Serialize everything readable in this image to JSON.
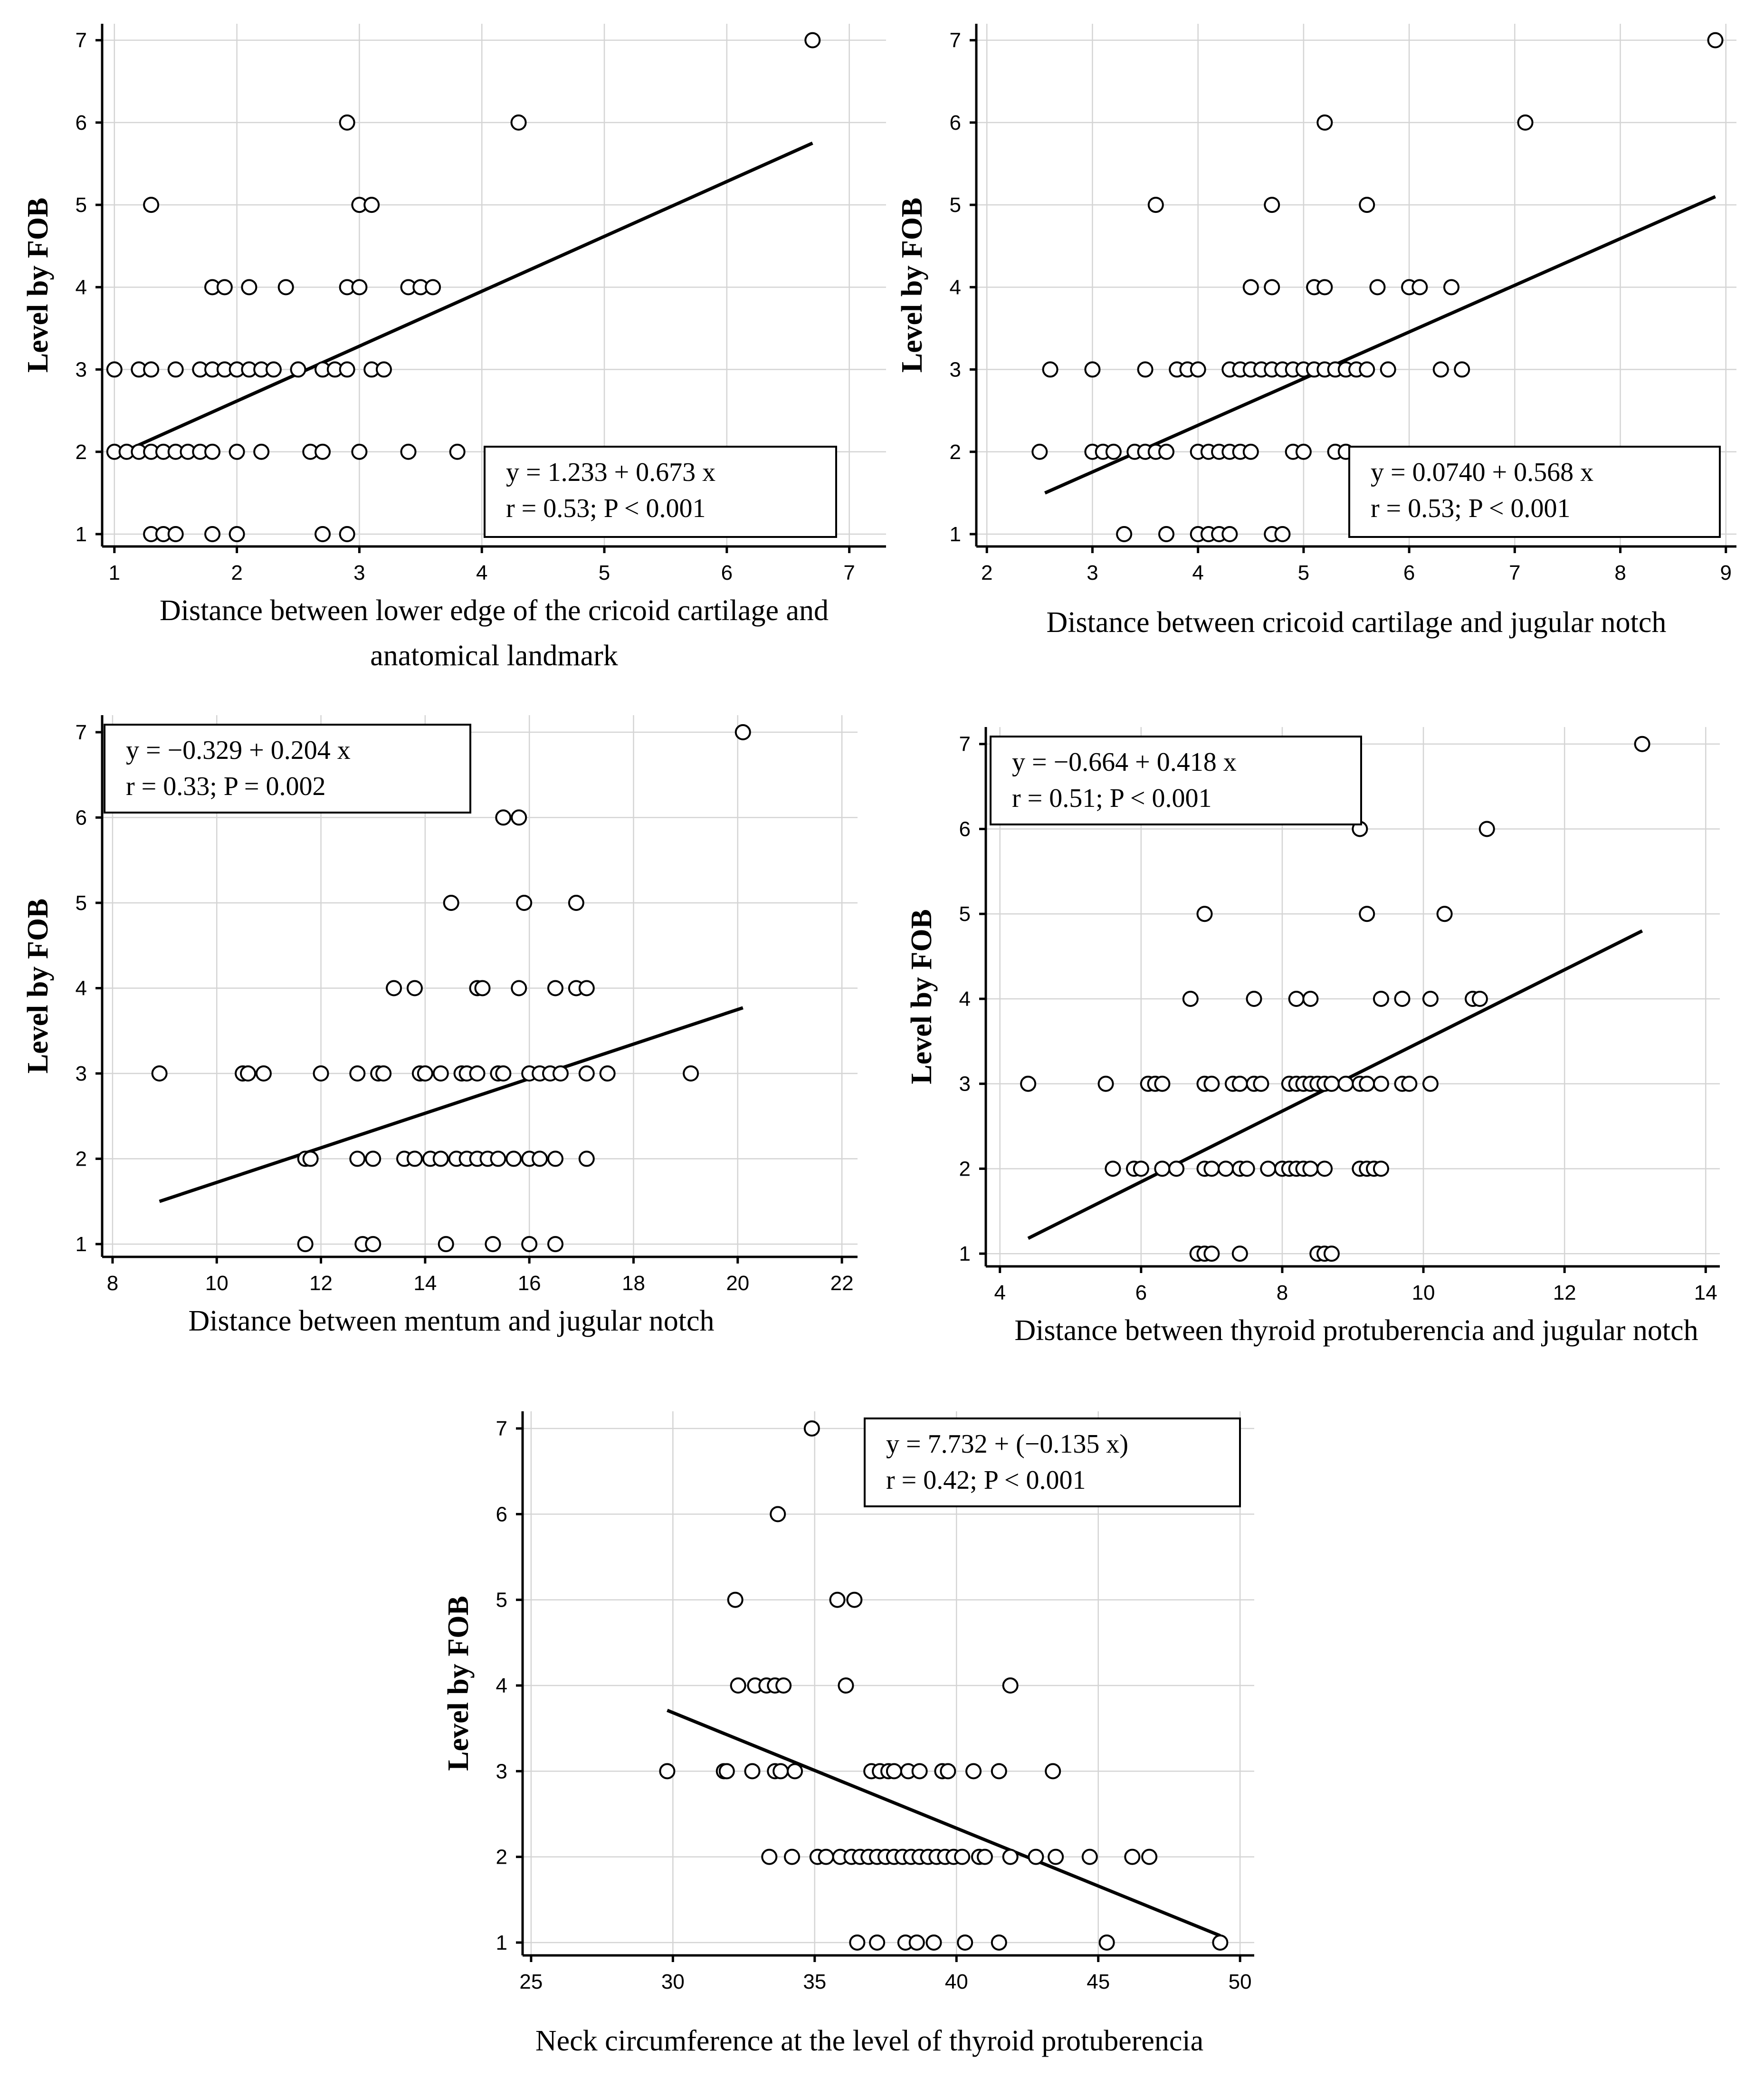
{
  "chart_data": [
    {
      "type": "scatter",
      "title": "",
      "xlabel": "Distance between lower edge of the cricoid cartilage and anatomical landmark",
      "xlabel_lines": [
        "Distance between lower edge of the cricoid cartilage and",
        "anatomical landmark"
      ],
      "ylabel": "Level by FOB",
      "xlim": [
        0.9,
        7.3
      ],
      "ylim": [
        0.85,
        7.2
      ],
      "xticks": [
        1,
        2,
        3,
        4,
        5,
        6,
        7
      ],
      "yticks": [
        1,
        2,
        3,
        4,
        5,
        6,
        7
      ],
      "equation": "y = 1.233  +  0.673  x",
      "stats": "r = 0.53; P < 0.001",
      "fit": {
        "x": [
          1.0,
          6.7
        ],
        "y": [
          1.95,
          5.75
        ]
      },
      "points": [
        [
          6.7,
          7
        ],
        [
          2.9,
          6
        ],
        [
          4.3,
          6
        ],
        [
          1.3,
          5
        ],
        [
          3.0,
          5
        ],
        [
          3.1,
          5
        ],
        [
          1.8,
          4
        ],
        [
          1.9,
          4
        ],
        [
          2.1,
          4
        ],
        [
          2.4,
          4
        ],
        [
          2.9,
          4
        ],
        [
          3.0,
          4
        ],
        [
          3.4,
          4
        ],
        [
          3.5,
          4
        ],
        [
          3.6,
          4
        ],
        [
          1.0,
          3
        ],
        [
          1.2,
          3
        ],
        [
          1.3,
          3
        ],
        [
          1.5,
          3
        ],
        [
          1.7,
          3
        ],
        [
          1.8,
          3
        ],
        [
          1.9,
          3
        ],
        [
          2.0,
          3
        ],
        [
          2.1,
          3
        ],
        [
          2.2,
          3
        ],
        [
          2.3,
          3
        ],
        [
          2.5,
          3
        ],
        [
          2.7,
          3
        ],
        [
          2.8,
          3
        ],
        [
          2.9,
          3
        ],
        [
          3.1,
          3
        ],
        [
          3.2,
          3
        ],
        [
          1.0,
          2
        ],
        [
          1.1,
          2
        ],
        [
          1.2,
          2
        ],
        [
          1.3,
          2
        ],
        [
          1.4,
          2
        ],
        [
          1.5,
          2
        ],
        [
          1.6,
          2
        ],
        [
          1.7,
          2
        ],
        [
          1.8,
          2
        ],
        [
          2.0,
          2
        ],
        [
          2.2,
          2
        ],
        [
          2.6,
          2
        ],
        [
          2.7,
          2
        ],
        [
          3.0,
          2
        ],
        [
          3.4,
          2
        ],
        [
          3.8,
          2
        ],
        [
          1.3,
          1
        ],
        [
          1.4,
          1
        ],
        [
          1.5,
          1
        ],
        [
          1.8,
          1
        ],
        [
          2.0,
          1
        ],
        [
          2.7,
          1
        ],
        [
          2.9,
          1
        ]
      ]
    },
    {
      "type": "scatter",
      "title": "",
      "xlabel": "Distance between cricoid cartilage and jugular notch",
      "xlabel_lines": [
        "Distance between cricoid cartilage and jugular notch"
      ],
      "ylabel": "Level by FOB",
      "xlim": [
        1.9,
        9.1
      ],
      "ylim": [
        0.85,
        7.2
      ],
      "xticks": [
        2,
        3,
        4,
        5,
        6,
        7,
        8,
        9
      ],
      "yticks": [
        1,
        2,
        3,
        4,
        5,
        6,
        7
      ],
      "equation": "y = 0.0740  +  0.568  x",
      "stats": "r = 0.53; P < 0.001",
      "fit": {
        "x": [
          2.55,
          8.9
        ],
        "y": [
          1.5,
          5.1
        ]
      },
      "points": [
        [
          8.9,
          7
        ],
        [
          7.1,
          6
        ],
        [
          5.2,
          6
        ],
        [
          3.6,
          5
        ],
        [
          4.7,
          5
        ],
        [
          5.6,
          5
        ],
        [
          4.5,
          4
        ],
        [
          4.7,
          4
        ],
        [
          5.1,
          4
        ],
        [
          5.2,
          4
        ],
        [
          5.7,
          4
        ],
        [
          6.0,
          4
        ],
        [
          6.1,
          4
        ],
        [
          6.4,
          4
        ],
        [
          2.6,
          3
        ],
        [
          3.0,
          3
        ],
        [
          3.5,
          3
        ],
        [
          3.8,
          3
        ],
        [
          3.9,
          3
        ],
        [
          4.0,
          3
        ],
        [
          4.3,
          3
        ],
        [
          4.4,
          3
        ],
        [
          4.5,
          3
        ],
        [
          4.6,
          3
        ],
        [
          4.7,
          3
        ],
        [
          4.8,
          3
        ],
        [
          4.9,
          3
        ],
        [
          5.0,
          3
        ],
        [
          5.1,
          3
        ],
        [
          5.2,
          3
        ],
        [
          5.3,
          3
        ],
        [
          5.4,
          3
        ],
        [
          5.5,
          3
        ],
        [
          5.6,
          3
        ],
        [
          5.8,
          3
        ],
        [
          6.3,
          3
        ],
        [
          6.5,
          3
        ],
        [
          2.5,
          2
        ],
        [
          3.0,
          2
        ],
        [
          3.1,
          2
        ],
        [
          3.2,
          2
        ],
        [
          3.4,
          2
        ],
        [
          3.5,
          2
        ],
        [
          3.6,
          2
        ],
        [
          3.7,
          2
        ],
        [
          4.0,
          2
        ],
        [
          4.1,
          2
        ],
        [
          4.2,
          2
        ],
        [
          4.3,
          2
        ],
        [
          4.4,
          2
        ],
        [
          4.5,
          2
        ],
        [
          4.9,
          2
        ],
        [
          5.0,
          2
        ],
        [
          5.3,
          2
        ],
        [
          5.4,
          2
        ],
        [
          3.3,
          1
        ],
        [
          3.7,
          1
        ],
        [
          4.0,
          1
        ],
        [
          4.1,
          1
        ],
        [
          4.2,
          1
        ],
        [
          4.3,
          1
        ],
        [
          4.7,
          1
        ],
        [
          4.8,
          1
        ]
      ]
    },
    {
      "type": "scatter",
      "title": "",
      "xlabel": "Distance between mentum and jugular notch",
      "xlabel_lines": [
        "Distance between mentum and jugular notch"
      ],
      "ylabel": "Level by FOB",
      "xlim": [
        7.8,
        22.3
      ],
      "ylim": [
        0.85,
        7.2
      ],
      "xticks": [
        8,
        10,
        12,
        14,
        16,
        18,
        20,
        22
      ],
      "yticks": [
        1,
        2,
        3,
        4,
        5,
        6,
        7
      ],
      "equation": "y = −0.329  +  0.204  x",
      "stats": "r = 0.33; P = 0.002",
      "fit": {
        "x": [
          8.9,
          20.1
        ],
        "y": [
          1.5,
          3.77
        ]
      },
      "points": [
        [
          20.1,
          7
        ],
        [
          15.5,
          6
        ],
        [
          15.8,
          6
        ],
        [
          14.5,
          5
        ],
        [
          15.9,
          5
        ],
        [
          16.9,
          5
        ],
        [
          13.4,
          4
        ],
        [
          13.8,
          4
        ],
        [
          15.0,
          4
        ],
        [
          15.1,
          4
        ],
        [
          15.8,
          4
        ],
        [
          16.5,
          4
        ],
        [
          16.9,
          4
        ],
        [
          17.1,
          4
        ],
        [
          8.9,
          3
        ],
        [
          10.5,
          3
        ],
        [
          10.6,
          3
        ],
        [
          10.9,
          3
        ],
        [
          12.0,
          3
        ],
        [
          12.7,
          3
        ],
        [
          13.1,
          3
        ],
        [
          13.2,
          3
        ],
        [
          13.9,
          3
        ],
        [
          14.0,
          3
        ],
        [
          14.3,
          3
        ],
        [
          14.7,
          3
        ],
        [
          14.8,
          3
        ],
        [
          15.0,
          3
        ],
        [
          15.4,
          3
        ],
        [
          15.5,
          3
        ],
        [
          16.0,
          3
        ],
        [
          16.2,
          3
        ],
        [
          16.4,
          3
        ],
        [
          16.6,
          3
        ],
        [
          17.1,
          3
        ],
        [
          17.5,
          3
        ],
        [
          19.1,
          3
        ],
        [
          11.7,
          2
        ],
        [
          11.8,
          2
        ],
        [
          12.7,
          2
        ],
        [
          13.0,
          2
        ],
        [
          13.6,
          2
        ],
        [
          13.8,
          2
        ],
        [
          14.1,
          2
        ],
        [
          14.3,
          2
        ],
        [
          14.6,
          2
        ],
        [
          14.8,
          2
        ],
        [
          15.0,
          2
        ],
        [
          15.2,
          2
        ],
        [
          15.4,
          2
        ],
        [
          15.7,
          2
        ],
        [
          16.0,
          2
        ],
        [
          16.2,
          2
        ],
        [
          16.5,
          2
        ],
        [
          17.1,
          2
        ],
        [
          11.7,
          1
        ],
        [
          12.8,
          1
        ],
        [
          13.0,
          1
        ],
        [
          14.4,
          1
        ],
        [
          15.3,
          1
        ],
        [
          16.0,
          1
        ],
        [
          16.5,
          1
        ]
      ]
    },
    {
      "type": "scatter",
      "title": "",
      "xlabel": "Distance between thyroid protuberencia and jugular notch",
      "xlabel_lines": [
        "Distance between thyroid protuberencia and jugular notch"
      ],
      "ylabel": "Level by FOB",
      "xlim": [
        3.8,
        14.2
      ],
      "ylim": [
        0.85,
        7.2
      ],
      "xticks": [
        4,
        6,
        8,
        10,
        12,
        14
      ],
      "yticks": [
        1,
        2,
        3,
        4,
        5,
        6,
        7
      ],
      "equation": "y = −0.664  +  0.418  x",
      "stats": "r = 0.51; P < 0.001",
      "fit": {
        "x": [
          4.4,
          13.1
        ],
        "y": [
          1.18,
          4.8
        ]
      },
      "points": [
        [
          13.1,
          7
        ],
        [
          9.1,
          6
        ],
        [
          10.9,
          6
        ],
        [
          6.9,
          5
        ],
        [
          9.2,
          5
        ],
        [
          10.3,
          5
        ],
        [
          6.7,
          4
        ],
        [
          7.6,
          4
        ],
        [
          8.2,
          4
        ],
        [
          8.4,
          4
        ],
        [
          9.4,
          4
        ],
        [
          9.7,
          4
        ],
        [
          10.1,
          4
        ],
        [
          10.7,
          4
        ],
        [
          10.8,
          4
        ],
        [
          4.4,
          3
        ],
        [
          5.5,
          3
        ],
        [
          6.1,
          3
        ],
        [
          6.2,
          3
        ],
        [
          6.3,
          3
        ],
        [
          6.9,
          3
        ],
        [
          7.0,
          3
        ],
        [
          7.3,
          3
        ],
        [
          7.4,
          3
        ],
        [
          7.6,
          3
        ],
        [
          7.7,
          3
        ],
        [
          8.1,
          3
        ],
        [
          8.2,
          3
        ],
        [
          8.3,
          3
        ],
        [
          8.4,
          3
        ],
        [
          8.5,
          3
        ],
        [
          8.6,
          3
        ],
        [
          8.7,
          3
        ],
        [
          8.9,
          3
        ],
        [
          9.1,
          3
        ],
        [
          9.2,
          3
        ],
        [
          9.4,
          3
        ],
        [
          9.7,
          3
        ],
        [
          9.8,
          3
        ],
        [
          10.1,
          3
        ],
        [
          5.6,
          2
        ],
        [
          5.9,
          2
        ],
        [
          6.0,
          2
        ],
        [
          6.3,
          2
        ],
        [
          6.5,
          2
        ],
        [
          6.9,
          2
        ],
        [
          7.0,
          2
        ],
        [
          7.2,
          2
        ],
        [
          7.4,
          2
        ],
        [
          7.5,
          2
        ],
        [
          7.8,
          2
        ],
        [
          8.0,
          2
        ],
        [
          8.1,
          2
        ],
        [
          8.2,
          2
        ],
        [
          8.3,
          2
        ],
        [
          8.4,
          2
        ],
        [
          8.6,
          2
        ],
        [
          9.1,
          2
        ],
        [
          9.2,
          2
        ],
        [
          9.3,
          2
        ],
        [
          9.4,
          2
        ],
        [
          6.8,
          1
        ],
        [
          6.9,
          1
        ],
        [
          7.0,
          1
        ],
        [
          7.4,
          1
        ],
        [
          8.5,
          1
        ],
        [
          8.6,
          1
        ],
        [
          8.7,
          1
        ]
      ]
    },
    {
      "type": "scatter",
      "title": "",
      "xlabel": "Neck circumference  at the level  of thyroid protuberencia",
      "xlabel_lines": [
        "Neck circumference  at the level  of thyroid protuberencia"
      ],
      "ylabel": "Level by FOB",
      "xlim": [
        24.7,
        50.5
      ],
      "ylim": [
        0.85,
        7.2
      ],
      "xticks": [
        25,
        30,
        35,
        40,
        45,
        50
      ],
      "yticks": [
        1,
        2,
        3,
        4,
        5,
        6,
        7
      ],
      "equation": "y = 7.732  +  (−0.135  x)",
      "stats": "r = 0.42; P < 0.001",
      "fit": {
        "x": [
          29.8,
          49.3
        ],
        "y": [
          3.71,
          1.08
        ]
      },
      "points": [
        [
          34.9,
          7
        ],
        [
          33.7,
          6
        ],
        [
          32.2,
          5
        ],
        [
          35.8,
          5
        ],
        [
          36.4,
          5
        ],
        [
          32.3,
          4
        ],
        [
          32.9,
          4
        ],
        [
          33.3,
          4
        ],
        [
          33.6,
          4
        ],
        [
          33.9,
          4
        ],
        [
          36.1,
          4
        ],
        [
          41.9,
          4
        ],
        [
          29.8,
          3
        ],
        [
          31.8,
          3
        ],
        [
          31.9,
          3
        ],
        [
          32.8,
          3
        ],
        [
          33.6,
          3
        ],
        [
          33.8,
          3
        ],
        [
          34.3,
          3
        ],
        [
          37.0,
          3
        ],
        [
          37.3,
          3
        ],
        [
          37.6,
          3
        ],
        [
          37.8,
          3
        ],
        [
          38.3,
          3
        ],
        [
          38.7,
          3
        ],
        [
          39.5,
          3
        ],
        [
          39.7,
          3
        ],
        [
          40.6,
          3
        ],
        [
          41.5,
          3
        ],
        [
          43.4,
          3
        ],
        [
          33.4,
          2
        ],
        [
          34.2,
          2
        ],
        [
          35.1,
          2
        ],
        [
          35.4,
          2
        ],
        [
          35.9,
          2
        ],
        [
          36.3,
          2
        ],
        [
          36.6,
          2
        ],
        [
          36.9,
          2
        ],
        [
          37.2,
          2
        ],
        [
          37.5,
          2
        ],
        [
          37.8,
          2
        ],
        [
          38.1,
          2
        ],
        [
          38.4,
          2
        ],
        [
          38.7,
          2
        ],
        [
          39.0,
          2
        ],
        [
          39.3,
          2
        ],
        [
          39.6,
          2
        ],
        [
          39.9,
          2
        ],
        [
          40.2,
          2
        ],
        [
          40.8,
          2
        ],
        [
          41.0,
          2
        ],
        [
          41.9,
          2
        ],
        [
          42.8,
          2
        ],
        [
          43.5,
          2
        ],
        [
          44.7,
          2
        ],
        [
          46.2,
          2
        ],
        [
          46.8,
          2
        ],
        [
          36.5,
          1
        ],
        [
          37.2,
          1
        ],
        [
          38.2,
          1
        ],
        [
          38.6,
          1
        ],
        [
          39.2,
          1
        ],
        [
          40.3,
          1
        ],
        [
          41.5,
          1
        ],
        [
          45.3,
          1
        ],
        [
          49.3,
          1
        ]
      ]
    }
  ]
}
